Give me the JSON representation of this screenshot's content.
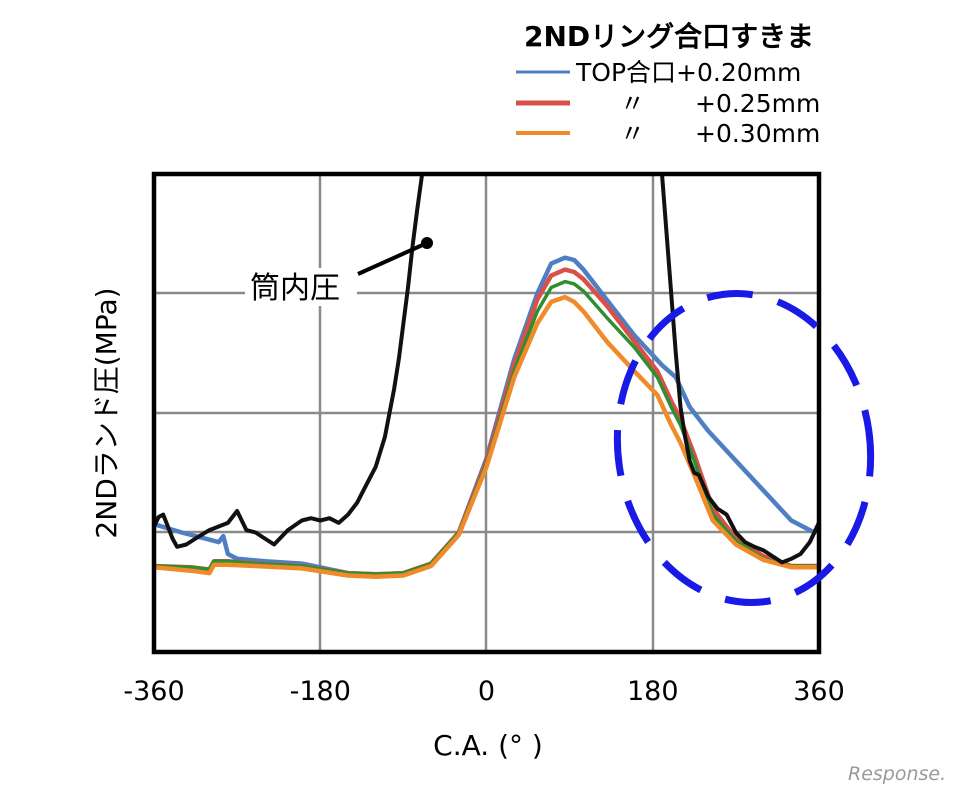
{
  "chart_data": {
    "type": "line",
    "xlabel": "C.A. (° )",
    "ylabel": "2NDランド圧(MPa)",
    "xlim": [
      -360,
      360
    ],
    "xticks": [
      -360,
      -180,
      0,
      180,
      360
    ],
    "xtick_labels": [
      "-360",
      "-180",
      "0",
      "180",
      "360"
    ],
    "y_tick_labels_shown": false,
    "grid": true,
    "legend": {
      "title": "2NDリング合口すきま",
      "placement": "top-right, above plot",
      "entries": [
        {
          "label": "TOP合口+0.20mm",
          "color": "#4f7fc3"
        },
        {
          "label": "〃　　+0.25mm",
          "color": "#d9504a"
        },
        {
          "label": "〃　　+0.30mm",
          "color": "#f08a2a"
        }
      ]
    },
    "annotation": {
      "text": "筒内圧"
    },
    "highlight": {
      "shape": "dashed ellipse",
      "color": "#1a1ae6",
      "x_range": [
        150,
        390
      ]
    },
    "y_scale_note": "values in grid units, 0 = plot bottom, 4 = plot top (gridlines at 1,2,3)",
    "series": [
      {
        "name": "TOP合口+0.20mm",
        "color": "#4f7fc3",
        "x": [
          -360,
          -330,
          -290,
          -285,
          -280,
          -270,
          -240,
          -200,
          -150,
          -120,
          -90,
          -60,
          -30,
          0,
          30,
          55,
          70,
          85,
          95,
          105,
          130,
          160,
          190,
          205,
          220,
          240,
          270,
          300,
          330,
          355,
          360
        ],
        "y": [
          1.07,
          1.0,
          0.92,
          0.97,
          0.82,
          0.78,
          0.76,
          0.74,
          0.66,
          0.65,
          0.66,
          0.74,
          1.0,
          1.62,
          2.45,
          3.0,
          3.25,
          3.3,
          3.28,
          3.2,
          2.95,
          2.65,
          2.4,
          2.3,
          2.05,
          1.85,
          1.6,
          1.35,
          1.1,
          1.0,
          1.08
        ]
      },
      {
        "name": "〃　　+0.25mm",
        "color": "#d9504a",
        "x": [
          -360,
          -320,
          -300,
          -295,
          -280,
          -250,
          -200,
          -150,
          -120,
          -90,
          -60,
          -30,
          0,
          30,
          55,
          70,
          85,
          95,
          105,
          130,
          160,
          185,
          200,
          210,
          225,
          245,
          270,
          300,
          330,
          360
        ],
        "y": [
          0.72,
          0.71,
          0.69,
          0.76,
          0.76,
          0.74,
          0.72,
          0.66,
          0.65,
          0.66,
          0.74,
          1.0,
          1.6,
          2.4,
          2.95,
          3.15,
          3.2,
          3.18,
          3.12,
          2.9,
          2.6,
          2.35,
          2.1,
          1.95,
          1.65,
          1.2,
          0.95,
          0.8,
          0.72,
          0.72
        ]
      },
      {
        "name": "green series",
        "color": "#2e8f2e",
        "x": [
          -360,
          -320,
          -300,
          -295,
          -280,
          -250,
          -200,
          -150,
          -120,
          -90,
          -60,
          -30,
          0,
          30,
          55,
          70,
          85,
          95,
          105,
          130,
          160,
          185,
          200,
          210,
          225,
          245,
          270,
          300,
          330,
          360
        ],
        "y": [
          0.72,
          0.71,
          0.69,
          0.76,
          0.76,
          0.74,
          0.72,
          0.66,
          0.65,
          0.66,
          0.74,
          1.0,
          1.58,
          2.35,
          2.85,
          3.05,
          3.1,
          3.08,
          3.02,
          2.8,
          2.55,
          2.3,
          2.05,
          1.9,
          1.6,
          1.15,
          0.93,
          0.78,
          0.72,
          0.72
        ]
      },
      {
        "name": "〃　　+0.30mm",
        "color": "#f08a2a",
        "x": [
          -360,
          -320,
          -300,
          -295,
          -280,
          -250,
          -200,
          -150,
          -120,
          -90,
          -60,
          -30,
          0,
          30,
          55,
          70,
          85,
          95,
          105,
          130,
          160,
          185,
          200,
          210,
          225,
          245,
          270,
          300,
          330,
          360
        ],
        "y": [
          0.71,
          0.68,
          0.66,
          0.73,
          0.73,
          0.72,
          0.7,
          0.64,
          0.63,
          0.64,
          0.72,
          0.98,
          1.55,
          2.3,
          2.75,
          2.93,
          2.97,
          2.93,
          2.85,
          2.6,
          2.35,
          2.15,
          1.9,
          1.75,
          1.48,
          1.1,
          0.9,
          0.77,
          0.71,
          0.71
        ]
      },
      {
        "name": "筒内圧",
        "color": "#111111",
        "x": [
          -360,
          -355,
          -350,
          -345,
          -340,
          -335,
          -325,
          -315,
          -300,
          -280,
          -270,
          -260,
          -250,
          -240,
          -230,
          -215,
          -200,
          -190,
          -180,
          -170,
          -160,
          -150,
          -140,
          -130,
          -120,
          -110,
          -105,
          -100,
          -95,
          -90,
          -85,
          -80,
          -75,
          -70,
          -66,
          -63,
          -61,
          -60,
          180,
          181,
          183,
          186,
          190,
          195,
          200,
          205,
          210,
          215,
          220,
          225,
          230,
          240,
          250,
          260,
          270,
          280,
          290,
          300,
          310,
          320,
          330,
          340,
          350,
          355,
          360
        ],
        "y": [
          1.05,
          1.13,
          1.15,
          1.05,
          0.95,
          0.88,
          0.9,
          0.95,
          1.02,
          1.08,
          1.18,
          1.02,
          1.0,
          0.95,
          0.9,
          1.02,
          1.1,
          1.12,
          1.1,
          1.12,
          1.08,
          1.15,
          1.25,
          1.4,
          1.55,
          1.8,
          2.0,
          2.2,
          2.45,
          2.75,
          3.05,
          3.4,
          3.7,
          3.98,
          4.4,
          5.0,
          5.6,
          6.0,
          6.0,
          5.5,
          5.0,
          4.5,
          4.0,
          3.5,
          3.0,
          2.5,
          2.05,
          1.8,
          1.6,
          1.5,
          1.48,
          1.3,
          1.2,
          1.15,
          1.0,
          0.92,
          0.88,
          0.85,
          0.8,
          0.75,
          0.78,
          0.82,
          0.92,
          1.0,
          1.08
        ]
      }
    ]
  },
  "watermark": "Response."
}
